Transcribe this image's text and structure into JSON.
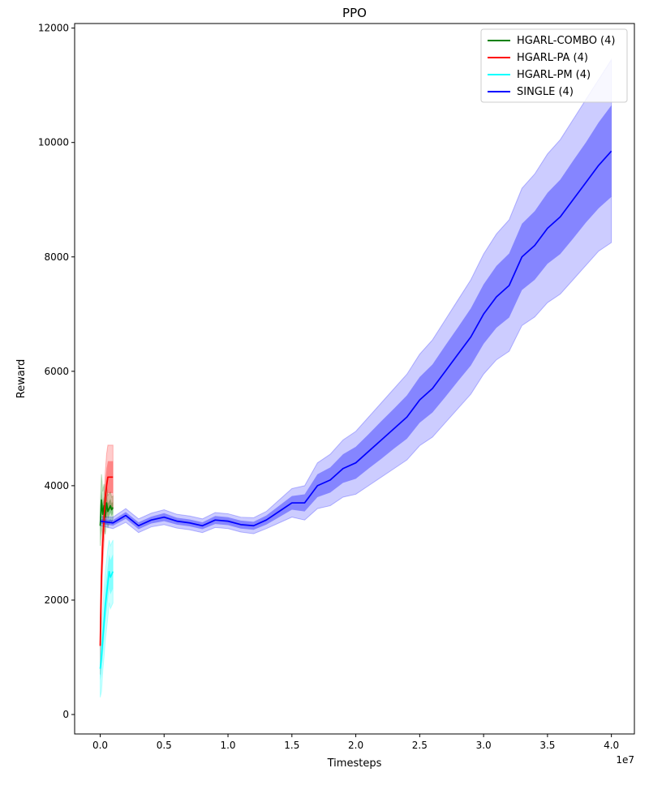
{
  "chart_data": {
    "type": "line",
    "title": "PPO",
    "xlabel": "Timesteps",
    "ylabel": "Reward",
    "x_offset_label": "1e7",
    "xlim": [
      -2000000,
      41800000
    ],
    "ylim": [
      -340,
      12080
    ],
    "x_ticks": [
      0,
      5000000,
      10000000,
      15000000,
      20000000,
      25000000,
      30000000,
      35000000,
      40000000
    ],
    "x_tick_labels": [
      "0.0",
      "0.5",
      "1.0",
      "1.5",
      "2.0",
      "2.5",
      "3.0",
      "3.5",
      "4.0"
    ],
    "y_ticks": [
      0,
      2000,
      4000,
      6000,
      8000,
      10000,
      12000
    ],
    "y_tick_labels": [
      "0",
      "2000",
      "4000",
      "6000",
      "8000",
      "10000",
      "12000"
    ],
    "grid": false,
    "legend_position": "top-right",
    "series": [
      {
        "name": "HGARL-COMBO (4)",
        "color": "#008000",
        "x": [
          0,
          100000,
          200000,
          300000,
          400000,
          500000,
          600000,
          700000,
          800000,
          900000,
          1000000
        ],
        "mean": [
          3300,
          3750,
          3500,
          3650,
          3450,
          3700,
          3550,
          3600,
          3650,
          3580,
          3620
        ],
        "std_inner": [
          150,
          200,
          180,
          170,
          150,
          160,
          140,
          130,
          120,
          110,
          100
        ],
        "std_outer": [
          350,
          450,
          400,
          380,
          300,
          320,
          280,
          260,
          240,
          220,
          200
        ]
      },
      {
        "name": "HGARL-PA (4)",
        "color": "#ff0000",
        "x": [
          0,
          100000,
          200000,
          300000,
          400000,
          500000,
          600000,
          700000,
          800000,
          900000,
          1000000
        ],
        "mean": [
          1200,
          2400,
          3000,
          3400,
          3800,
          4000,
          4150,
          4150,
          4150,
          4150,
          4150
        ],
        "std_inner": [
          250,
          250,
          200,
          200,
          250,
          300,
          280,
          280,
          280,
          280,
          280
        ],
        "std_outer": [
          500,
          500,
          400,
          400,
          450,
          550,
          560,
          560,
          560,
          560,
          560
        ]
      },
      {
        "name": "HGARL-PM (4)",
        "color": "#00ffff",
        "x": [
          0,
          100000,
          200000,
          300000,
          400000,
          500000,
          600000,
          700000,
          800000,
          900000,
          1000000
        ],
        "mean": [
          800,
          1000,
          1300,
          1600,
          1900,
          2100,
          2300,
          2500,
          2400,
          2450,
          2500
        ],
        "std_inner": [
          200,
          300,
          300,
          300,
          300,
          300,
          300,
          300,
          300,
          300,
          300
        ],
        "std_outer": [
          500,
          600,
          550,
          600,
          600,
          600,
          600,
          550,
          550,
          550,
          550
        ]
      },
      {
        "name": "SINGLE (4)",
        "color": "#0000ff",
        "x": [
          0,
          1000000,
          2000000,
          3000000,
          4000000,
          5000000,
          6000000,
          7000000,
          8000000,
          9000000,
          10000000,
          11000000,
          12000000,
          13000000,
          14000000,
          15000000,
          16000000,
          17000000,
          18000000,
          19000000,
          20000000,
          21000000,
          22000000,
          23000000,
          24000000,
          25000000,
          26000000,
          27000000,
          28000000,
          29000000,
          30000000,
          31000000,
          32000000,
          33000000,
          34000000,
          35000000,
          36000000,
          37000000,
          38000000,
          39000000,
          40000000
        ],
        "mean": [
          3380,
          3350,
          3480,
          3300,
          3400,
          3450,
          3380,
          3350,
          3300,
          3400,
          3380,
          3320,
          3300,
          3400,
          3550,
          3700,
          3700,
          4000,
          4100,
          4300,
          4400,
          4600,
          4800,
          5000,
          5200,
          5500,
          5700,
          6000,
          6300,
          6600,
          7000,
          7300,
          7500,
          8000,
          8200,
          8500,
          8700,
          9000,
          9300,
          9600,
          9850
        ],
        "std_inner": [
          40,
          50,
          60,
          60,
          60,
          70,
          60,
          60,
          60,
          70,
          70,
          70,
          70,
          80,
          100,
          120,
          150,
          200,
          220,
          250,
          280,
          300,
          330,
          350,
          380,
          400,
          420,
          450,
          470,
          500,
          520,
          540,
          560,
          580,
          600,
          620,
          650,
          680,
          700,
          750,
          800
        ],
        "std_outer": [
          80,
          100,
          120,
          120,
          120,
          130,
          120,
          120,
          120,
          130,
          130,
          130,
          140,
          150,
          200,
          250,
          300,
          400,
          450,
          500,
          550,
          600,
          650,
          700,
          750,
          800,
          850,
          900,
          950,
          1000,
          1050,
          1100,
          1150,
          1200,
          1250,
          1300,
          1350,
          1400,
          1450,
          1500,
          1600
        ]
      }
    ]
  }
}
